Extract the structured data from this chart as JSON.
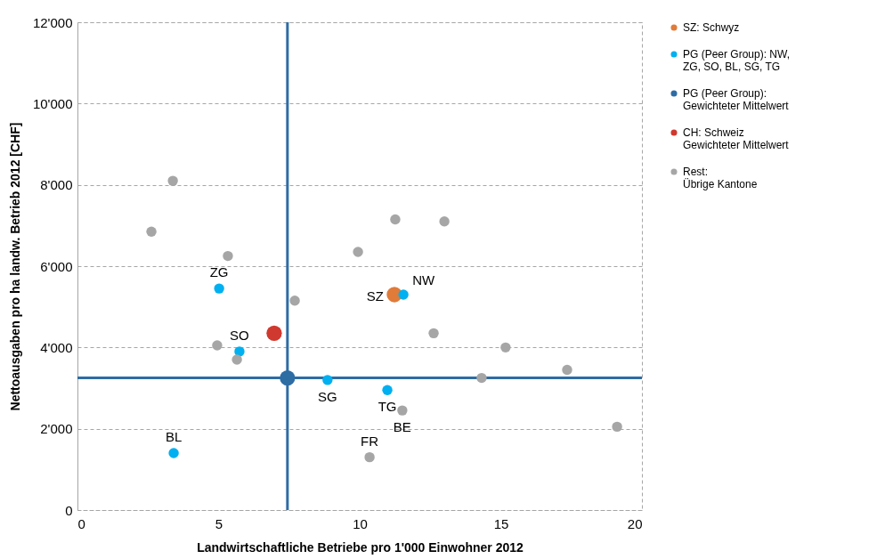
{
  "chart_data": {
    "type": "scatter",
    "xlabel": "Landwirtschaftliche Betriebe pro 1'000 Einwohner 2012",
    "ylabel": "Nettoausgaben pro ha landw. Betrieb  2012 [CHF]",
    "xlim": [
      0,
      20
    ],
    "xticks": [
      0,
      5,
      10,
      15,
      20
    ],
    "ylim": [
      0,
      12000
    ],
    "yticks": [
      0,
      {
        "value": 2000,
        "label": "2'000"
      },
      {
        "value": 4000,
        "label": "4'000"
      },
      {
        "value": 6000,
        "label": "6'000"
      },
      {
        "value": 8000,
        "label": "8'000"
      },
      {
        "value": 10000,
        "label": "10'000"
      },
      {
        "value": 12000,
        "label": "12'000"
      }
    ],
    "grid": "y",
    "legend": "right",
    "marker": "circle",
    "ref_lines": [
      {
        "axis": "x",
        "value": 7.44,
        "color": "#2e6ca4"
      },
      {
        "axis": "y",
        "value": 3250,
        "color": "#2e6ca4"
      }
    ],
    "series": [
      {
        "name": "SZ: Schwyz",
        "color": "#e07b39",
        "x": [
          11.23
        ],
        "values": [
          5300
        ]
      },
      {
        "name": "PG (Peer Group): NW,\nZG, SO, BL, SG, TG",
        "color": "#00b0f0",
        "x": [
          5.02,
          5.74,
          3.41,
          8.86,
          10.98,
          11.55
        ],
        "values": [
          5450,
          3900,
          1400,
          3200,
          2950,
          5300
        ]
      },
      {
        "name": "PG (Peer Group):\nGewichteter Mittelwert",
        "color": "#2e6ca4",
        "x": [
          7.44
        ],
        "values": [
          3250
        ]
      },
      {
        "name": "CH: Schweiz\nGewichteter Mittelwert",
        "color": "#d0392f",
        "x": [
          6.97
        ],
        "values": [
          4350
        ]
      },
      {
        "name": "Rest:\nÜbrige  Kantone",
        "color": "#a6a6a6",
        "x": [
          3.38,
          2.62,
          5.33,
          7.7,
          9.94,
          11.26,
          13.0,
          12.62,
          15.17,
          14.32,
          17.35,
          19.12,
          4.95,
          5.65,
          11.51,
          10.35
        ],
        "values": [
          8100,
          6850,
          6250,
          5150,
          6350,
          7150,
          7100,
          4350,
          4000,
          3250,
          3450,
          2050,
          4050,
          3700,
          2450,
          1300
        ]
      }
    ],
    "annotations": [
      {
        "text": "ZG",
        "x": 5.02,
        "y": 5450
      },
      {
        "text": "SO",
        "x": 5.74,
        "y": 3900
      },
      {
        "text": "BL",
        "x": 3.41,
        "y": 1400
      },
      {
        "text": "SG",
        "x": 8.86,
        "y": 3200
      },
      {
        "text": "TG",
        "x": 10.98,
        "y": 2950
      },
      {
        "text": "BE",
        "x": 11.51,
        "y": 2450
      },
      {
        "text": "FR",
        "x": 10.35,
        "y": 1300
      },
      {
        "text": "SZ",
        "x": 11.23,
        "y": 5300
      },
      {
        "text": "NW",
        "x": 11.55,
        "y": 5300
      }
    ]
  }
}
